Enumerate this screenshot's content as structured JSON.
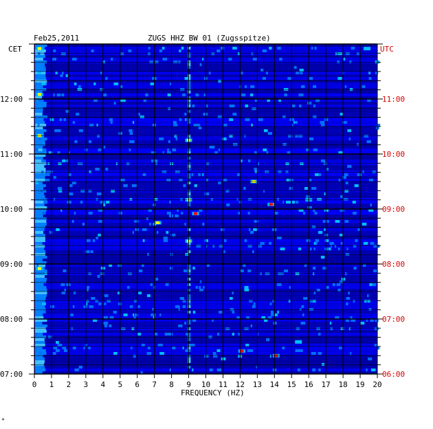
{
  "header": {
    "date": "Feb25,2011",
    "station": "ZUGS HHZ BW 01 (Zugsspitze)",
    "left_timezone": "CET",
    "right_timezone": "UTC"
  },
  "footer_mark": "*",
  "colors": {
    "background": "#00007f",
    "grid": "#000000",
    "utc_text": "#d40000",
    "low": "#0000ff",
    "mid": "#00bfff",
    "high": "#ffff00",
    "peak": "#ff0000"
  },
  "chart_data": {
    "type": "heatmap",
    "title": "ZUGS HHZ BW 01 (Zugsspitze)",
    "xlabel": "FREQUENCY (HZ)",
    "x_ticks": [
      "0",
      "1",
      "2",
      "3",
      "4",
      "5",
      "6",
      "7",
      "8",
      "9",
      "10",
      "11",
      "12",
      "13",
      "14",
      "15",
      "16",
      "17",
      "18",
      "19",
      "20"
    ],
    "xlim": [
      0,
      20
    ],
    "y_ticks_cet": [
      "07:00",
      "08:00",
      "09:00",
      "10:00",
      "11:00",
      "12:00"
    ],
    "y_ticks_utc": [
      "06:00",
      "07:00",
      "08:00",
      "09:00",
      "10:00",
      "11:00"
    ],
    "time_range_cet": [
      "07:00",
      "13:00"
    ],
    "grid": true,
    "hot_spots": [
      {
        "freq": 0.3,
        "time_cet": "12:05",
        "level": "high"
      },
      {
        "freq": 0.3,
        "time_cet": "11:20",
        "level": "high"
      },
      {
        "freq": 0.3,
        "time_cet": "08:55",
        "level": "high"
      },
      {
        "freq": 0.3,
        "time_cet": "12:55",
        "level": "high"
      },
      {
        "freq": 9.0,
        "time_cet": "09:25",
        "level": "high"
      },
      {
        "freq": 9.0,
        "time_cet": "10:10",
        "level": "high"
      },
      {
        "freq": 9.0,
        "time_cet": "11:15",
        "level": "high"
      },
      {
        "freq": 9.4,
        "time_cet": "09:55",
        "level": "peak"
      },
      {
        "freq": 7.2,
        "time_cet": "09:45",
        "level": "high"
      },
      {
        "freq": 12.8,
        "time_cet": "10:30",
        "level": "high"
      },
      {
        "freq": 13.8,
        "time_cet": "10:05",
        "level": "peak"
      },
      {
        "freq": 16.0,
        "time_cet": "10:10",
        "level": "mid"
      },
      {
        "freq": 15.4,
        "time_cet": "07:35",
        "level": "mid"
      },
      {
        "freq": 12.1,
        "time_cet": "07:25",
        "level": "peak"
      },
      {
        "freq": 14.1,
        "time_cet": "07:20",
        "level": "peak"
      },
      {
        "freq": 19.4,
        "time_cet": "12:55",
        "level": "mid"
      }
    ]
  }
}
